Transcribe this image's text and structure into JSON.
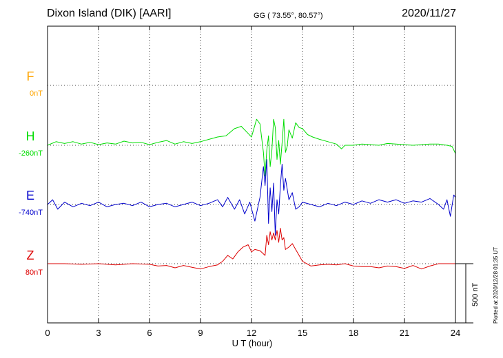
{
  "header": {
    "station": "Dixon Island (DIK)  [AARI]",
    "coords": "GG ( 73.55°,  80.57°)",
    "date": "2020/11/27"
  },
  "scale": {
    "label": "500 nT",
    "nt": 500
  },
  "plotted_note": "Plotted at 2020/12/28 01:35 UT",
  "colors": {
    "F": "#ffa500",
    "H": "#00dd00",
    "E": "#0000cc",
    "Z": "#dd0000"
  },
  "chart_data": {
    "type": "line",
    "xlabel": "U T (hour)",
    "xlim": [
      0,
      24
    ],
    "xticks": [
      0,
      3,
      6,
      9,
      12,
      15,
      18,
      21,
      24
    ],
    "grid": true,
    "series": [
      {
        "name": "F",
        "baseline_label": "0nT",
        "x": [],
        "y": []
      },
      {
        "name": "H",
        "baseline_label": "-260nT",
        "x": [
          0,
          0.5,
          1,
          1.5,
          2,
          2.5,
          3,
          3.5,
          4,
          4.5,
          5,
          5.5,
          6,
          6.5,
          7,
          7.5,
          8,
          8.5,
          9,
          9.5,
          10,
          10.5,
          11,
          11.4,
          11.8,
          12,
          12.3,
          12.5,
          12.6,
          12.7,
          12.8,
          12.9,
          13,
          13.1,
          13.2,
          13.3,
          13.4,
          13.5,
          13.6,
          13.7,
          13.8,
          13.9,
          14,
          14.1,
          14.2,
          14.4,
          14.6,
          14.8,
          15,
          15.3,
          15.6,
          16,
          16.5,
          17,
          17.3,
          17.5,
          18,
          18.5,
          19,
          19.5,
          20,
          20.5,
          21,
          21.5,
          22,
          22.5,
          23,
          23.5,
          23.8,
          24
        ],
        "y": [
          -260,
          -230,
          -245,
          -230,
          -250,
          -235,
          -255,
          -240,
          -250,
          -225,
          -240,
          -235,
          -255,
          -235,
          -220,
          -250,
          -230,
          -245,
          -230,
          -210,
          -190,
          -180,
          -120,
          -100,
          -160,
          -190,
          -40,
          -80,
          -200,
          -320,
          -520,
          -300,
          -180,
          -440,
          -300,
          -40,
          -110,
          -380,
          -220,
          -420,
          -240,
          -40,
          -320,
          -270,
          -130,
          -200,
          -70,
          -110,
          -120,
          -170,
          -190,
          -210,
          -230,
          -250,
          -290,
          -260,
          -260,
          -250,
          -255,
          -260,
          -245,
          -250,
          -255,
          -260,
          -255,
          -250,
          -250,
          -260,
          -270,
          -330
        ]
      },
      {
        "name": "E",
        "baseline_label": "-740nT",
        "x": [
          0,
          0.3,
          0.6,
          1,
          1.5,
          2,
          2.5,
          3,
          3.5,
          4,
          4.5,
          5,
          5.5,
          6,
          6.5,
          7,
          7.5,
          8,
          8.5,
          9,
          9.5,
          10,
          10.3,
          10.6,
          11,
          11.3,
          11.6,
          11.9,
          12.2,
          12.5,
          12.7,
          12.8,
          12.9,
          13,
          13.1,
          13.2,
          13.3,
          13.4,
          13.5,
          13.6,
          13.7,
          13.8,
          13.9,
          14,
          14.2,
          14.4,
          14.6,
          14.8,
          15,
          15.5,
          16,
          16.5,
          17,
          17.5,
          18,
          18.5,
          19,
          19.5,
          20,
          20.5,
          21,
          21.5,
          22,
          22.5,
          23,
          23.3,
          23.5,
          23.7,
          23.9,
          24
        ],
        "y": [
          -740,
          -700,
          -780,
          -720,
          -760,
          -730,
          -750,
          -720,
          -760,
          -740,
          -730,
          -750,
          -720,
          -760,
          -740,
          -730,
          -760,
          -740,
          -720,
          -750,
          -730,
          -700,
          -760,
          -680,
          -780,
          -700,
          -820,
          -720,
          -880,
          -680,
          -420,
          -580,
          -360,
          -900,
          -600,
          -800,
          -560,
          -1000,
          -700,
          -820,
          -580,
          -400,
          -620,
          -520,
          -700,
          -640,
          -780,
          -760,
          -720,
          -740,
          -760,
          -730,
          -750,
          -720,
          -740,
          -710,
          -730,
          -700,
          -720,
          -700,
          -730,
          -710,
          -720,
          -690,
          -740,
          -780,
          -700,
          -840,
          -660,
          -680
        ]
      },
      {
        "name": "Z",
        "baseline_label": "80nT",
        "x": [
          0,
          1,
          2,
          3,
          4,
          5,
          6,
          6.5,
          7,
          7.5,
          8,
          8.5,
          9,
          9.5,
          10,
          10.3,
          10.6,
          10.9,
          11.2,
          11.5,
          11.8,
          12,
          12.2,
          12.5,
          12.8,
          12.9,
          13,
          13.1,
          13.2,
          13.3,
          13.4,
          13.5,
          13.6,
          13.7,
          13.8,
          13.9,
          14,
          14.2,
          14.4,
          14.6,
          14.8,
          15,
          15.5,
          16,
          16.5,
          17,
          17.5,
          18,
          18.5,
          19,
          19.5,
          20,
          20.5,
          21,
          21.5,
          22,
          22.5,
          23,
          23.5,
          24
        ],
        "y": [
          80,
          80,
          75,
          80,
          70,
          80,
          75,
          60,
          65,
          45,
          65,
          50,
          35,
          55,
          70,
          100,
          150,
          120,
          180,
          220,
          240,
          180,
          200,
          190,
          150,
          320,
          240,
          350,
          280,
          340,
          280,
          360,
          260,
          380,
          280,
          300,
          200,
          220,
          250,
          200,
          150,
          100,
          60,
          70,
          75,
          70,
          80,
          60,
          55,
          55,
          45,
          60,
          55,
          40,
          65,
          35,
          60,
          80,
          80,
          80
        ]
      },
      {
        "name": "scale",
        "baseline_label": "",
        "x": [],
        "y": []
      }
    ]
  }
}
